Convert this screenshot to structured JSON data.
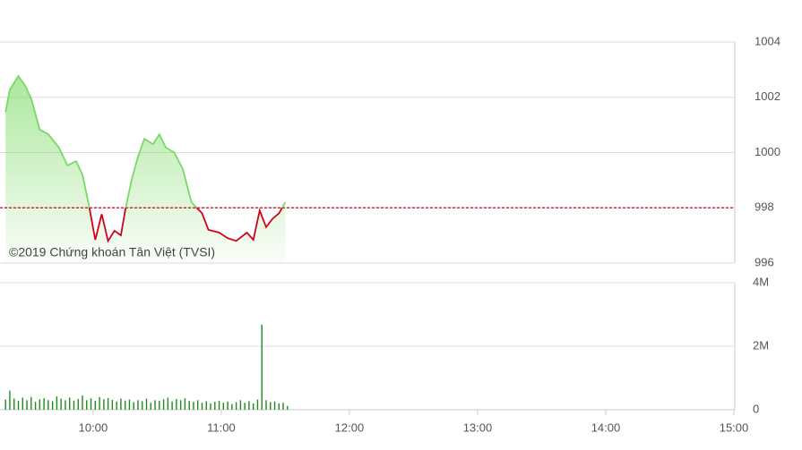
{
  "chart_data": [
    {
      "type": "line",
      "watermark": "©2019 Chứng khoán Tân Việt (TVSI)",
      "x": [
        559,
        561,
        565,
        568,
        571,
        575,
        579,
        584,
        588,
        592,
        595,
        598,
        601,
        604,
        607,
        610,
        613,
        615,
        618,
        621,
        624,
        628,
        631,
        634,
        638,
        642,
        646,
        651,
        654,
        659,
        663,
        667,
        672,
        675,
        678,
        681,
        684,
        687,
        690
      ],
      "values": [
        1001.47,
        1002.28,
        1002.77,
        1002.45,
        1001.96,
        1000.83,
        1000.66,
        1000.18,
        999.53,
        999.69,
        999.2,
        998.1,
        996.84,
        997.77,
        996.8,
        997.17,
        997.0,
        997.9,
        999.0,
        999.85,
        1000.5,
        1000.3,
        1000.66,
        1000.18,
        1000.0,
        999.4,
        998.2,
        997.8,
        997.2,
        997.1,
        996.9,
        996.8,
        997.1,
        996.84,
        997.9,
        997.3,
        997.6,
        997.8,
        998.2
      ],
      "reference": 998,
      "up_color": "#7bd86a",
      "down_color": "#d0021b",
      "reference_color": "#d0021b",
      "xlim": [
        556.4,
        900
      ],
      "ylim": [
        996,
        1004
      ],
      "yticks": [
        996,
        998,
        1000,
        1002,
        1004
      ],
      "grid": true
    },
    {
      "type": "bar",
      "color": "#1f8a1f",
      "x": [
        559,
        561,
        563,
        565,
        567,
        569,
        571,
        573,
        575,
        577,
        579,
        581,
        583,
        585,
        587,
        589,
        591,
        593,
        595,
        597,
        599,
        601,
        603,
        605,
        607,
        609,
        611,
        613,
        615,
        617,
        619,
        621,
        623,
        625,
        627,
        629,
        631,
        633,
        635,
        637,
        639,
        641,
        643,
        645,
        647,
        649,
        651,
        653,
        655,
        657,
        659,
        661,
        663,
        665,
        667,
        669,
        671,
        673,
        675,
        677,
        679,
        681,
        683,
        685,
        687,
        689,
        691
      ],
      "values": [
        0.32,
        0.6,
        0.35,
        0.28,
        0.38,
        0.3,
        0.4,
        0.25,
        0.33,
        0.36,
        0.3,
        0.27,
        0.42,
        0.35,
        0.3,
        0.38,
        0.29,
        0.34,
        0.45,
        0.3,
        0.36,
        0.28,
        0.4,
        0.33,
        0.37,
        0.31,
        0.26,
        0.35,
        0.29,
        0.32,
        0.24,
        0.3,
        0.27,
        0.35,
        0.22,
        0.3,
        0.28,
        0.33,
        0.38,
        0.26,
        0.34,
        0.3,
        0.36,
        0.28,
        0.25,
        0.3,
        0.22,
        0.27,
        0.2,
        0.25,
        0.28,
        0.22,
        0.26,
        0.18,
        0.24,
        0.3,
        0.22,
        0.27,
        0.2,
        0.32,
        2.68,
        0.3,
        0.24,
        0.26,
        0.2,
        0.22,
        0.12
      ],
      "xlim": [
        556.4,
        900
      ],
      "xticks": [
        {
          "value": 600,
          "label": "10:00"
        },
        {
          "value": 660,
          "label": "11:00"
        },
        {
          "value": 720,
          "label": "12:00"
        },
        {
          "value": 780,
          "label": "13:00"
        },
        {
          "value": 840,
          "label": "14:00"
        },
        {
          "value": 900,
          "label": "15:00"
        }
      ],
      "ylim": [
        0,
        4
      ],
      "yticks": [
        0,
        {
          "value": 2,
          "label": "2M"
        },
        {
          "value": 4,
          "label": "4M"
        }
      ],
      "grid": true
    }
  ]
}
